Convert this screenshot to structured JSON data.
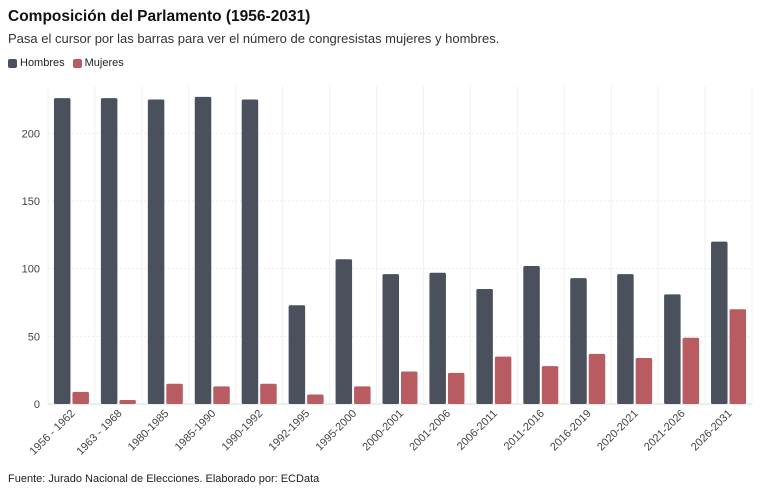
{
  "header": {
    "title": "Composición del Parlamento (1956-2031)",
    "subtitle": "Pasa el cursor por las barras para ver el número de congresistas mujeres y hombres."
  },
  "legend": {
    "items": [
      {
        "label": "Hombres",
        "color": "#4a505c"
      },
      {
        "label": "Mujeres",
        "color": "#b85c62"
      }
    ]
  },
  "footer": {
    "source": "Fuente: Jurado Nacional de Elecciones. Elaborado por: ECData"
  },
  "chart_data": {
    "type": "bar",
    "title": "Composición del Parlamento (1956-2031)",
    "categories": [
      "1956 - 1962",
      "1963 - 1968",
      "1980-1985",
      "1985-1990",
      "1990-1992",
      "1992-1995",
      "1995-2000",
      "2000-2001",
      "2001-2006",
      "2006-2011",
      "2011-2016",
      "2016-2019",
      "2020-2021",
      "2021-2026",
      "2026-2031"
    ],
    "series": [
      {
        "name": "Hombres",
        "color": "#4a505c",
        "values": [
          226,
          226,
          225,
          227,
          225,
          73,
          107,
          96,
          97,
          85,
          102,
          93,
          96,
          81,
          120
        ]
      },
      {
        "name": "Mujeres",
        "color": "#b85c62",
        "values": [
          9,
          3,
          15,
          13,
          15,
          7,
          13,
          24,
          23,
          35,
          28,
          37,
          34,
          49,
          70
        ]
      }
    ],
    "yticks": [
      0,
      50,
      100,
      150,
      200
    ],
    "ylim": [
      0,
      235
    ],
    "grid": true,
    "legend_position": "top-left",
    "xlabel": "",
    "ylabel": ""
  }
}
